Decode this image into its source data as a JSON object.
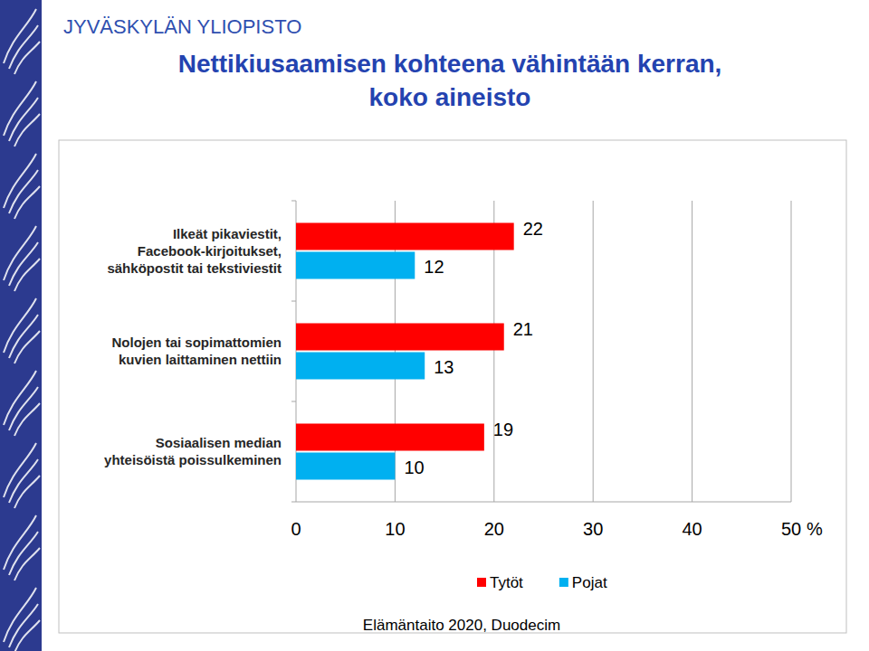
{
  "header": "JYVÄSKYLÄN YLIOPISTO",
  "chart_data": {
    "type": "bar",
    "orientation": "horizontal",
    "title": "Nettikiusaamisen kohteena vähintään kerran,\nkoko aineisto",
    "categories": [
      "Ilkeät pikaviestit,\nFacebook-kirjoitukset,\nsähköpostit tai tekstiviestit",
      "Nolojen tai sopimattomien\nkuvien laittaminen nettiin",
      "Sosiaalisen median\nyhteisöistä poissulkeminen"
    ],
    "series": [
      {
        "name": "Tytöt",
        "color": "#ff0000",
        "values": [
          22,
          21,
          19
        ]
      },
      {
        "name": "Pojat",
        "color": "#00b0f0",
        "values": [
          12,
          13,
          10
        ]
      }
    ],
    "xlim": [
      0,
      50
    ],
    "xticks": [
      0,
      10,
      20,
      30,
      40,
      50
    ],
    "xlabel": "%",
    "grid": true,
    "data_labels": true,
    "legend": "bottom",
    "source": "Elämäntaito 2020, Duodecim"
  }
}
